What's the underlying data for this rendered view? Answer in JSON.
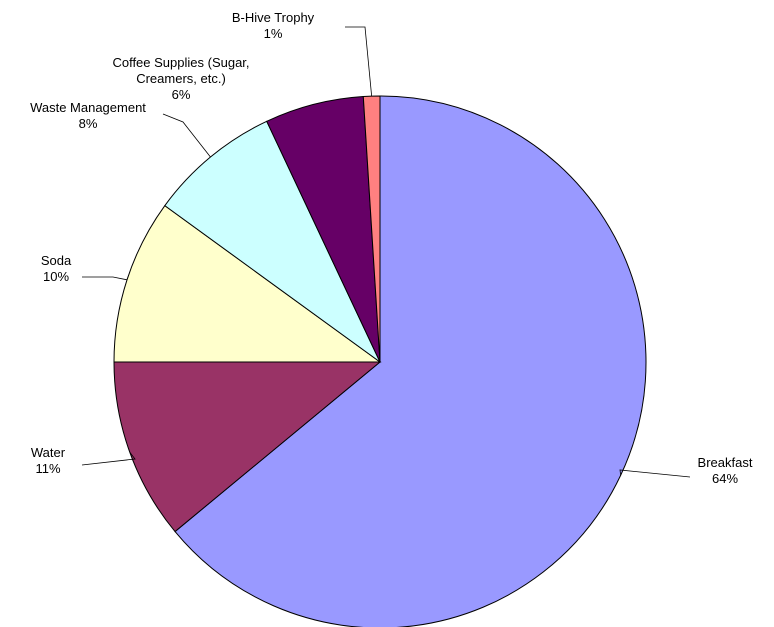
{
  "chart_data": {
    "type": "pie",
    "title": "",
    "start_angle_deg": 0,
    "direction": "clockwise",
    "slices": [
      {
        "name": "Breakfast",
        "value": 64,
        "label_lines": [
          "Breakfast"
        ],
        "pct_label": "64%",
        "color": "#9999FF"
      },
      {
        "name": "Water",
        "value": 11,
        "label_lines": [
          "Water"
        ],
        "pct_label": "11%",
        "color": "#993366"
      },
      {
        "name": "Soda",
        "value": 10,
        "label_lines": [
          "Soda"
        ],
        "pct_label": "10%",
        "color": "#FFFFCC"
      },
      {
        "name": "Waste Management",
        "value": 8,
        "label_lines": [
          "Waste Management"
        ],
        "pct_label": "8%",
        "color": "#CCFFFF"
      },
      {
        "name": "Coffee Supplies (Sugar, Creamers, etc.)",
        "value": 6,
        "label_lines": [
          "Coffee Supplies (Sugar,",
          "Creamers, etc.)"
        ],
        "pct_label": "6%",
        "color": "#660066"
      },
      {
        "name": "B-Hive Trophy",
        "value": 1,
        "label_lines": [
          "B-Hive Trophy"
        ],
        "pct_label": "1%",
        "color": "#FF8080"
      }
    ]
  }
}
